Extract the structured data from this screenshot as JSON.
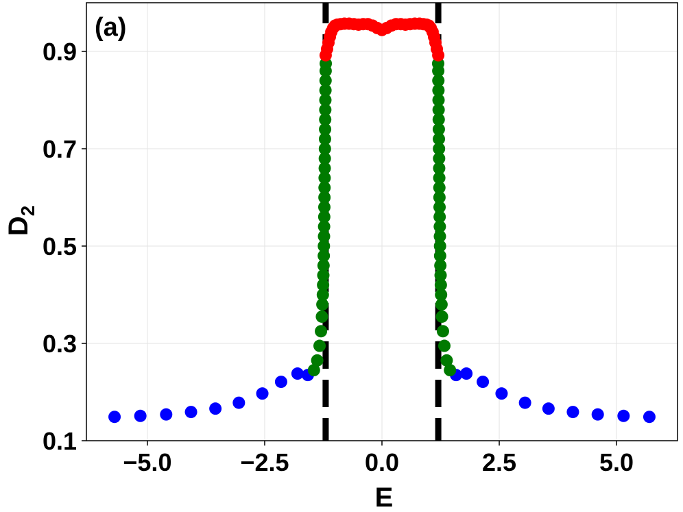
{
  "chart_data": {
    "type": "scatter",
    "title": "",
    "panel_label": "(a)",
    "xlabel": "E",
    "ylabel_main": "D",
    "ylabel_sub": "2",
    "xlim": [
      -6.3,
      6.3
    ],
    "ylim": [
      0.1,
      1.0
    ],
    "xticks": [
      -5.0,
      -2.5,
      0.0,
      2.5,
      5.0
    ],
    "xtick_labels": [
      "−5.0",
      "−2.5",
      "0.0",
      "2.5",
      "5.0"
    ],
    "yticks": [
      0.1,
      0.3,
      0.5,
      0.7,
      0.9
    ],
    "ytick_labels": [
      "0.1",
      "0.3",
      "0.5",
      "0.7",
      "0.9"
    ],
    "grid": true,
    "legend": "none",
    "vlines": {
      "x": [
        -1.2,
        1.2
      ],
      "color": "#000000",
      "style": "dashed"
    },
    "series": [
      {
        "color": "#0000ff",
        "points": [
          [
            -5.7,
            0.149
          ],
          [
            -5.15,
            0.151
          ],
          [
            -4.6,
            0.154
          ],
          [
            -4.07,
            0.159
          ],
          [
            -3.55,
            0.166
          ],
          [
            -3.05,
            0.178
          ],
          [
            -2.55,
            0.197
          ],
          [
            -2.15,
            0.221
          ],
          [
            -1.8,
            0.238
          ],
          [
            -1.58,
            0.235
          ],
          [
            1.58,
            0.235
          ],
          [
            1.8,
            0.238
          ],
          [
            2.15,
            0.221
          ],
          [
            2.55,
            0.197
          ],
          [
            3.05,
            0.178
          ],
          [
            3.55,
            0.166
          ],
          [
            4.07,
            0.159
          ],
          [
            4.6,
            0.154
          ],
          [
            5.15,
            0.151
          ],
          [
            5.7,
            0.149
          ]
        ]
      },
      {
        "color": "#007a00",
        "points": [
          [
            -1.45,
            0.245
          ],
          [
            -1.38,
            0.265
          ],
          [
            -1.33,
            0.295
          ],
          [
            -1.3,
            0.325
          ],
          [
            -1.28,
            0.355
          ],
          [
            -1.27,
            0.38
          ],
          [
            -1.26,
            0.4
          ],
          [
            -1.255,
            0.42
          ],
          [
            -1.25,
            0.44
          ],
          [
            -1.245,
            0.46
          ],
          [
            -1.24,
            0.48
          ],
          [
            -1.238,
            0.5
          ],
          [
            -1.235,
            0.52
          ],
          [
            -1.233,
            0.54
          ],
          [
            -1.23,
            0.56
          ],
          [
            -1.228,
            0.58
          ],
          [
            -1.226,
            0.6
          ],
          [
            -1.224,
            0.62
          ],
          [
            -1.222,
            0.64
          ],
          [
            -1.22,
            0.66
          ],
          [
            -1.218,
            0.68
          ],
          [
            -1.216,
            0.7
          ],
          [
            -1.214,
            0.72
          ],
          [
            -1.212,
            0.74
          ],
          [
            -1.21,
            0.76
          ],
          [
            -1.208,
            0.78
          ],
          [
            -1.206,
            0.8
          ],
          [
            -1.204,
            0.82
          ],
          [
            -1.202,
            0.84
          ],
          [
            -1.2,
            0.86
          ],
          [
            -1.198,
            0.875
          ],
          [
            1.198,
            0.875
          ],
          [
            1.2,
            0.86
          ],
          [
            1.202,
            0.84
          ],
          [
            1.204,
            0.82
          ],
          [
            1.206,
            0.8
          ],
          [
            1.208,
            0.78
          ],
          [
            1.21,
            0.76
          ],
          [
            1.212,
            0.74
          ],
          [
            1.214,
            0.72
          ],
          [
            1.216,
            0.7
          ],
          [
            1.218,
            0.68
          ],
          [
            1.22,
            0.66
          ],
          [
            1.222,
            0.64
          ],
          [
            1.224,
            0.62
          ],
          [
            1.226,
            0.6
          ],
          [
            1.228,
            0.58
          ],
          [
            1.23,
            0.56
          ],
          [
            1.233,
            0.54
          ],
          [
            1.235,
            0.52
          ],
          [
            1.238,
            0.5
          ],
          [
            1.24,
            0.48
          ],
          [
            1.245,
            0.46
          ],
          [
            1.25,
            0.44
          ],
          [
            1.255,
            0.42
          ],
          [
            1.26,
            0.4
          ],
          [
            1.27,
            0.38
          ],
          [
            1.28,
            0.355
          ],
          [
            1.3,
            0.325
          ],
          [
            1.33,
            0.295
          ],
          [
            1.38,
            0.265
          ],
          [
            1.45,
            0.245
          ]
        ]
      },
      {
        "color": "#ff0000",
        "points": [
          [
            -1.2,
            0.892
          ],
          [
            -1.17,
            0.905
          ],
          [
            -1.14,
            0.918
          ],
          [
            -1.11,
            0.93
          ],
          [
            -1.08,
            0.94
          ],
          [
            -1.04,
            0.948
          ],
          [
            -1.0,
            0.953
          ],
          [
            -0.95,
            0.955
          ],
          [
            -0.88,
            0.956
          ],
          [
            -0.8,
            0.957
          ],
          [
            -0.7,
            0.957
          ],
          [
            -0.6,
            0.956
          ],
          [
            -0.5,
            0.955
          ],
          [
            -0.4,
            0.956
          ],
          [
            -0.3,
            0.956
          ],
          [
            -0.2,
            0.953
          ],
          [
            -0.1,
            0.948
          ],
          [
            0.0,
            0.944
          ],
          [
            0.1,
            0.948
          ],
          [
            0.2,
            0.953
          ],
          [
            0.3,
            0.956
          ],
          [
            0.4,
            0.956
          ],
          [
            0.5,
            0.955
          ],
          [
            0.6,
            0.956
          ],
          [
            0.7,
            0.957
          ],
          [
            0.8,
            0.957
          ],
          [
            0.88,
            0.956
          ],
          [
            0.95,
            0.955
          ],
          [
            1.0,
            0.953
          ],
          [
            1.04,
            0.948
          ],
          [
            1.08,
            0.94
          ],
          [
            1.11,
            0.93
          ],
          [
            1.14,
            0.918
          ],
          [
            1.17,
            0.905
          ],
          [
            1.2,
            0.892
          ]
        ]
      }
    ]
  }
}
